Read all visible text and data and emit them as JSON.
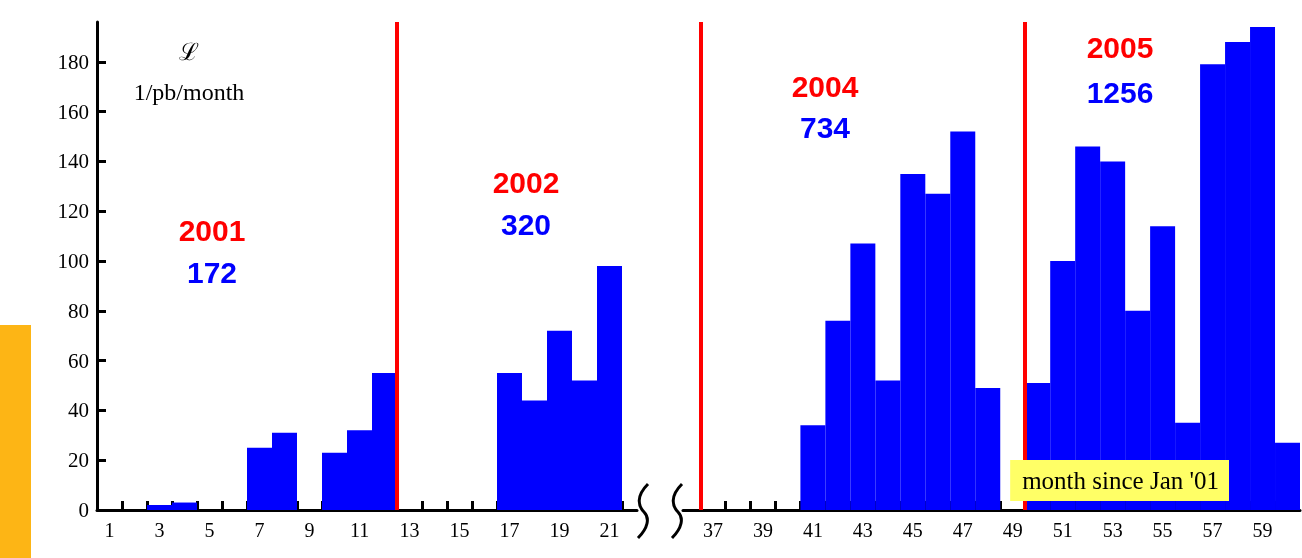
{
  "chart_data": [
    {
      "type": "histogram",
      "color": "#0000ff",
      "ylabel": "ℒ\n1/pb/month",
      "bins": [
        0.5,
        1.5,
        2.5,
        3.5,
        4.5,
        5.5,
        6.5,
        7.5,
        8.5,
        9.5,
        10.5,
        11.5,
        12.5,
        13.5,
        14.5,
        15.5,
        16.5,
        17.5,
        18.5,
        19.5,
        20.5,
        21.5
      ],
      "values": [
        0,
        0,
        2,
        3,
        0,
        0,
        25,
        31,
        0,
        23,
        32,
        55,
        0,
        0,
        0,
        0,
        55,
        44,
        72,
        52,
        98
      ],
      "xlim": [
        0.5,
        22.1
      ],
      "xticks": [
        {
          "value": 1,
          "label": "1"
        },
        {
          "value": 3,
          "label": "3"
        },
        {
          "value": 5,
          "label": "5"
        },
        {
          "value": 7,
          "label": "7"
        },
        {
          "value": 9,
          "label": "9"
        },
        {
          "value": 11,
          "label": "11"
        },
        {
          "value": 13,
          "label": "13"
        },
        {
          "value": 15,
          "label": "15"
        },
        {
          "value": 17,
          "label": "17"
        },
        {
          "value": 19,
          "label": "19"
        },
        {
          "value": 21,
          "label": "21"
        },
        {
          "value": 1.5,
          "label": null
        },
        {
          "value": 2.5,
          "label": null
        },
        {
          "value": 3.5,
          "label": null
        },
        {
          "value": 4.5,
          "label": null
        },
        {
          "value": 5.5,
          "label": null
        },
        {
          "value": 6.5,
          "label": null
        },
        {
          "value": 7.5,
          "label": null
        },
        {
          "value": 8.5,
          "label": null
        },
        {
          "value": 9.5,
          "label": null
        },
        {
          "value": 10.5,
          "label": null
        },
        {
          "value": 11.5,
          "label": null
        },
        {
          "value": 12.5,
          "label": null
        },
        {
          "value": 13.5,
          "label": null
        },
        {
          "value": 14.5,
          "label": null
        },
        {
          "value": 15.5,
          "label": null
        },
        {
          "value": 16.5,
          "label": null
        },
        {
          "value": 17.5,
          "label": null
        },
        {
          "value": 18.5,
          "label": null
        },
        {
          "value": 19.5,
          "label": null
        },
        {
          "value": 20.5,
          "label": null
        },
        {
          "value": 21.5,
          "label": null
        }
      ],
      "ylim": [
        0,
        196
      ],
      "yticks": [
        0,
        20,
        40,
        60,
        80,
        100,
        120,
        140,
        160,
        180
      ],
      "ref_lines": [
        {
          "axis": "x",
          "value": 12.5,
          "color": "#ff0000"
        }
      ],
      "annotations": [
        "2001",
        "172",
        "2002",
        "320"
      ]
    },
    {
      "type": "histogram",
      "color": "#0000ff",
      "xlabel": "month since Jan '01",
      "tick_labels": "x",
      "bins": [
        36.5,
        37.5,
        38.5,
        39.5,
        40.5,
        41.5,
        42.5,
        43.5,
        44.5,
        45.5,
        46.5,
        47.5,
        48.5,
        49.5,
        50.5,
        51.5,
        52.5,
        53.5,
        54.5,
        55.5,
        56.5,
        57.5,
        58.5,
        59.5,
        60.5
      ],
      "values": [
        0,
        0,
        0,
        0,
        34,
        76,
        107,
        52,
        135,
        127,
        152,
        49,
        0,
        51,
        100,
        146,
        140,
        80,
        114,
        35,
        179,
        188,
        194,
        27
      ],
      "xlim": [
        35.8,
        60.5
      ],
      "xticks": [
        {
          "value": 37,
          "label": "37"
        },
        {
          "value": 39,
          "label": "39"
        },
        {
          "value": 41,
          "label": "41"
        },
        {
          "value": 43,
          "label": "43"
        },
        {
          "value": 45,
          "label": "45"
        },
        {
          "value": 47,
          "label": "47"
        },
        {
          "value": 49,
          "label": "49"
        },
        {
          "value": 51,
          "label": "51"
        },
        {
          "value": 53,
          "label": "53"
        },
        {
          "value": 55,
          "label": "55"
        },
        {
          "value": 57,
          "label": "57"
        },
        {
          "value": 59,
          "label": "59"
        },
        {
          "value": 36.5,
          "label": null
        },
        {
          "value": 37.5,
          "label": null
        },
        {
          "value": 38.5,
          "label": null
        },
        {
          "value": 39.5,
          "label": null
        },
        {
          "value": 40.5,
          "label": null
        },
        {
          "value": 41.5,
          "label": null
        },
        {
          "value": 42.5,
          "label": null
        },
        {
          "value": 43.5,
          "label": null
        },
        {
          "value": 44.5,
          "label": null
        },
        {
          "value": 45.5,
          "label": null
        },
        {
          "value": 46.5,
          "label": null
        },
        {
          "value": 47.5,
          "label": null
        },
        {
          "value": 48.5,
          "label": null
        },
        {
          "value": 49.5,
          "label": null
        },
        {
          "value": 50.5,
          "label": null
        },
        {
          "value": 51.5,
          "label": null
        },
        {
          "value": 52.5,
          "label": null
        },
        {
          "value": 53.5,
          "label": null
        },
        {
          "value": 54.5,
          "label": null
        },
        {
          "value": 55.5,
          "label": null
        },
        {
          "value": 56.5,
          "label": null
        },
        {
          "value": 57.5,
          "label": null
        },
        {
          "value": 58.5,
          "label": null
        },
        {
          "value": 59.5,
          "label": null
        }
      ],
      "ylim": [
        0,
        196
      ],
      "yticks": [
        0,
        20,
        40,
        60,
        80,
        100,
        120,
        140,
        160,
        180
      ],
      "ref_lines": [
        {
          "axis": "x",
          "value": 36.5,
          "color": "#ff0000"
        },
        {
          "axis": "x",
          "value": 49.5,
          "color": "#ff0000"
        }
      ],
      "annotations": [
        "2004",
        "734",
        "2005",
        "1256"
      ]
    }
  ]
}
